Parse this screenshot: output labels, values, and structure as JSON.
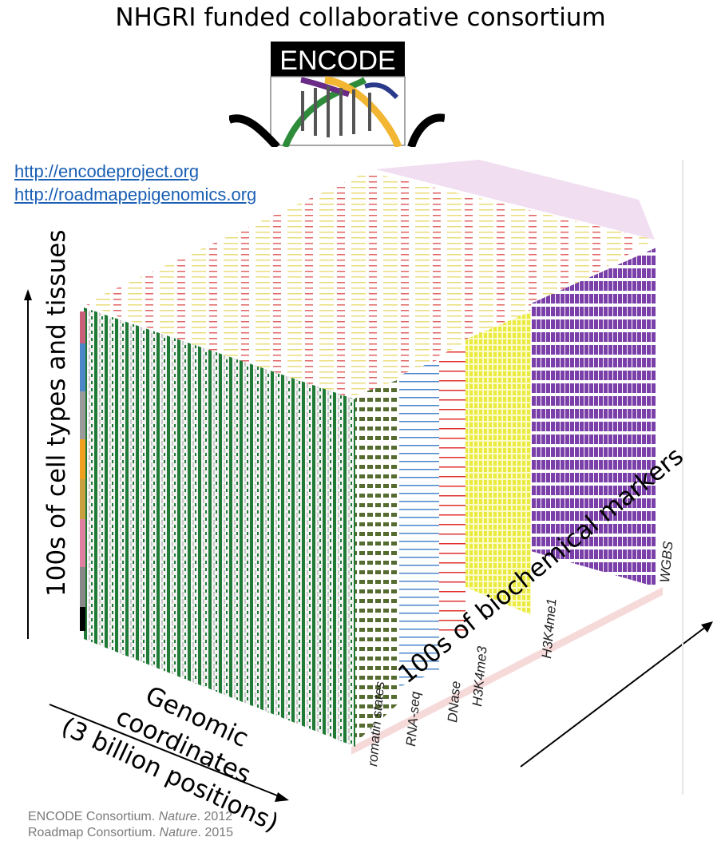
{
  "title": "NHGRI funded collaborative consortium",
  "logo_text": "ENCODE",
  "links": [
    "http://encodeproject.org",
    "http://roadmapepigenomics.org"
  ],
  "axis_cell_types": "100s of cell types and tissues",
  "axis_genomic_line1": "Genomic coordinates",
  "axis_genomic_line2": "(3 billion positions)",
  "axis_biochemical": "100s of biochemical markers",
  "layers": [
    {
      "name": "Chromatin states",
      "visible": "romatin states",
      "color": "#556b2f"
    },
    {
      "name": "RNA-seq",
      "visible": "RNA-seq",
      "color": "#4a86c8"
    },
    {
      "name": "DNase",
      "visible": "DNase",
      "color": "#e03030"
    },
    {
      "name": "H3K4me3",
      "visible": "H3K4me3",
      "color": "#eaea40"
    },
    {
      "name": "H3K4me1",
      "visible": "H3K4me1",
      "color": "#f0b040"
    },
    {
      "name": "WGBS",
      "visible": "WGBS",
      "color": "#7a3fa8"
    }
  ],
  "citations": [
    {
      "source": "ENCODE Consortium. ",
      "journal": "Nature",
      "year": ". 2012"
    },
    {
      "source": "Roadmap Consortium. ",
      "journal": "Nature",
      "year": ". 2015"
    }
  ]
}
